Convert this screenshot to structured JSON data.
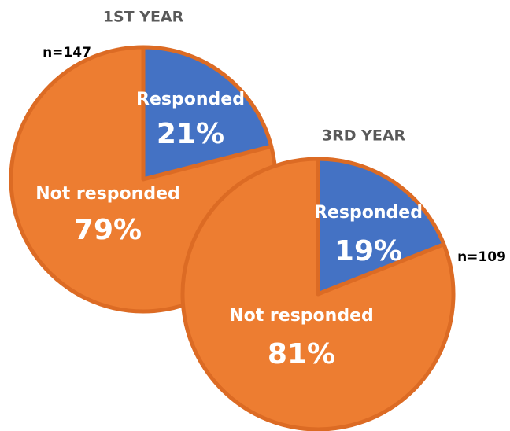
{
  "chart_data": [
    {
      "type": "pie",
      "title": "1ST YEAR",
      "annotation": "n=147",
      "categories": [
        "Responded",
        "Not responded"
      ],
      "values": [
        21,
        79
      ],
      "value_labels": [
        "21%",
        "79%"
      ],
      "colors": [
        "#4472c4",
        "#ed7d31"
      ]
    },
    {
      "type": "pie",
      "title": "3RD YEAR",
      "annotation": "n=109",
      "categories": [
        "Responded",
        "Not responded"
      ],
      "values": [
        19,
        81
      ],
      "value_labels": [
        "19%",
        "81%"
      ],
      "colors": [
        "#4472c4",
        "#ed7d31"
      ]
    }
  ]
}
